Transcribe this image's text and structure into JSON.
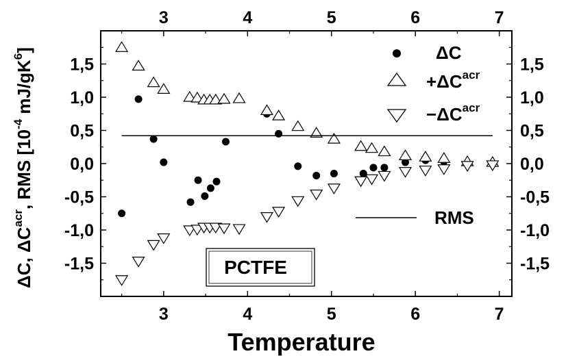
{
  "chart_data": {
    "type": "scatter",
    "title": "",
    "xlabel": "Temperature",
    "ylabel": {
      "parts": [
        "ΔC, ΔC",
        "acr",
        ", RMS [10",
        "-4",
        " mJ/gK",
        "6",
        "]"
      ]
    },
    "xlim": [
      2.25,
      7.15
    ],
    "ylim": [
      -2.0,
      2.0
    ],
    "x_ticks": [
      "3",
      "4",
      "5",
      "6",
      "7"
    ],
    "y_ticks": [
      "1,5",
      "1,0",
      "0,5",
      "0,0",
      "-0,5",
      "-1,0",
      "-1,5"
    ],
    "y_tick_values": [
      1.5,
      1.0,
      0.5,
      0.0,
      -0.5,
      -1.0,
      -1.5
    ],
    "x_tick_values": [
      3,
      4,
      5,
      6,
      7
    ],
    "grid": false,
    "legend_position": "top-right",
    "legend": [
      {
        "marker": "filled-circle",
        "label_main": "ΔC",
        "label_sup": ""
      },
      {
        "marker": "triangle-up",
        "label_main": "+ΔC",
        "label_sup": "acr"
      },
      {
        "marker": "triangle-down",
        "label_main": "−ΔC",
        "label_sup": "acr"
      }
    ],
    "rms_label": "RMS",
    "annotation": "PCTFE",
    "series": [
      {
        "name": "ΔC",
        "marker": "filled-circle",
        "x": [
          2.5,
          2.7,
          2.88,
          3.0,
          3.32,
          3.41,
          3.49,
          3.56,
          3.63,
          3.74,
          4.23,
          4.37,
          4.6,
          4.82,
          5.03,
          5.38,
          5.5,
          5.63,
          5.88,
          6.12,
          6.34
        ],
        "y": [
          -0.75,
          0.97,
          0.37,
          0.02,
          -0.58,
          -0.25,
          -0.49,
          -0.37,
          -0.27,
          0.33,
          0.75,
          0.45,
          -0.04,
          -0.18,
          -0.15,
          -0.15,
          -0.06,
          -0.06,
          0.02,
          0.05,
          0.03
        ]
      },
      {
        "name": "+ΔCacr",
        "marker": "triangle-up",
        "x": [
          2.5,
          2.7,
          2.88,
          3.0,
          3.31,
          3.4,
          3.48,
          3.55,
          3.62,
          3.72,
          3.9,
          4.23,
          4.37,
          4.6,
          4.82,
          5.03,
          5.35,
          5.48,
          5.63,
          5.88,
          6.12,
          6.34,
          6.62,
          6.92
        ],
        "y": [
          1.75,
          1.47,
          1.22,
          1.12,
          1.0,
          0.99,
          0.96,
          0.96,
          0.96,
          0.97,
          0.98,
          0.8,
          0.72,
          0.56,
          0.46,
          0.37,
          0.26,
          0.23,
          0.18,
          0.12,
          0.1,
          0.08,
          0.03,
          0.02
        ]
      },
      {
        "name": "−ΔCacr",
        "marker": "triangle-down",
        "x": [
          2.5,
          2.7,
          2.88,
          3.0,
          3.31,
          3.4,
          3.48,
          3.55,
          3.62,
          3.72,
          3.9,
          4.23,
          4.37,
          4.6,
          4.82,
          5.03,
          5.35,
          5.48,
          5.63,
          5.88,
          6.12,
          6.34,
          6.62,
          6.92
        ],
        "y": [
          -1.75,
          -1.47,
          -1.22,
          -1.12,
          -1.0,
          -0.99,
          -0.96,
          -0.96,
          -0.96,
          -0.97,
          -0.98,
          -0.8,
          -0.72,
          -0.56,
          -0.46,
          -0.37,
          -0.26,
          -0.23,
          -0.18,
          -0.12,
          -0.1,
          -0.08,
          -0.03,
          -0.02
        ]
      },
      {
        "name": "RMS",
        "marker": "line",
        "x": [
          2.5,
          6.92
        ],
        "y": [
          0.42,
          0.42
        ]
      }
    ]
  }
}
